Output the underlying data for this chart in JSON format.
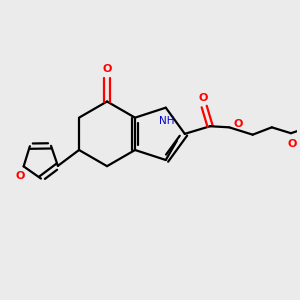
{
  "bg_color": "#ebebeb",
  "bond_color": "#000000",
  "o_color": "#ff0000",
  "n_color": "#0000cd",
  "line_width": 1.6,
  "figsize": [
    3.0,
    3.0
  ],
  "dpi": 100,
  "xlim": [
    0,
    10
  ],
  "ylim": [
    0,
    10
  ]
}
